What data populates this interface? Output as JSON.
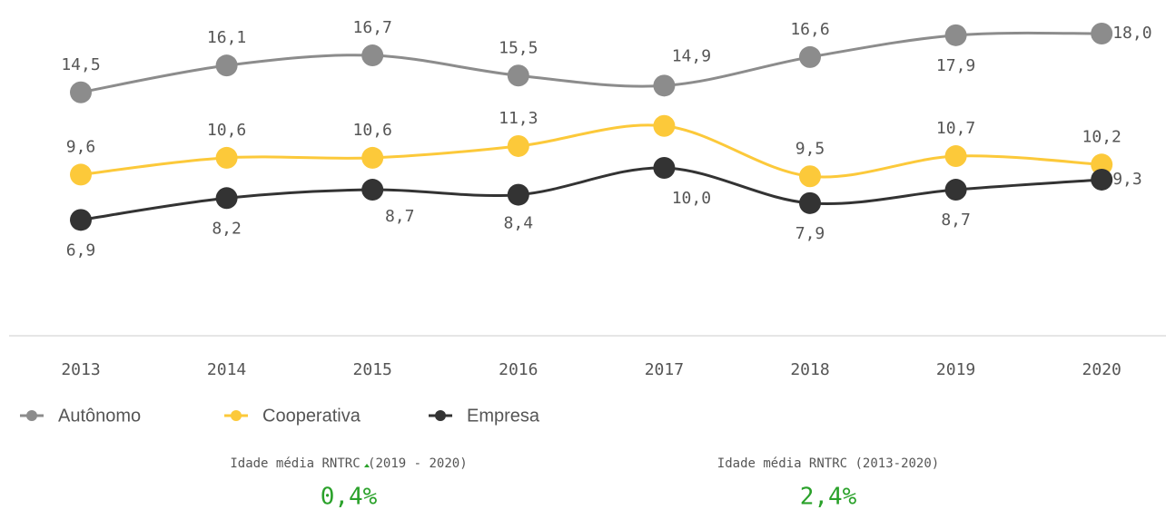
{
  "chart_data": {
    "type": "line",
    "categories": [
      "2013",
      "2014",
      "2015",
      "2016",
      "2017",
      "2018",
      "2019",
      "2020"
    ],
    "series": [
      {
        "name": "Autônomo",
        "color": "#8c8c8c",
        "values": [
          14.5,
          16.1,
          16.7,
          15.5,
          14.9,
          16.6,
          17.9,
          18.0
        ],
        "value_labels": [
          "14,5",
          "16,1",
          "16,7",
          "15,5",
          "14,9",
          "16,6",
          "17,9",
          "18,0"
        ]
      },
      {
        "name": "Cooperativa",
        "color": "#fcc93a",
        "values": [
          9.6,
          10.6,
          10.6,
          11.3,
          12.5,
          9.5,
          10.7,
          10.2
        ],
        "value_labels": [
          "9,6",
          "10,6",
          "10,6",
          "11,3",
          null,
          "9,5",
          "10,7",
          "10,2"
        ]
      },
      {
        "name": "Empresa",
        "color": "#333333",
        "values": [
          6.9,
          8.2,
          8.7,
          8.4,
          10.0,
          7.9,
          8.7,
          9.3
        ],
        "value_labels": [
          "6,9",
          "8,2",
          "8,7",
          "8,4",
          "10,0",
          "7,9",
          "8,7",
          "9,3"
        ]
      }
    ],
    "ylim": [
      0,
      20
    ],
    "legend": "bottom-left"
  },
  "kpis": [
    {
      "label": "Idade média RNTRC (2019 - 2020)",
      "value": "0,4%",
      "color": "#2aa12a"
    },
    {
      "label": "Idade média RNTRC (2013-2020)",
      "value": "2,4%",
      "color": "#2aa12a"
    }
  ]
}
